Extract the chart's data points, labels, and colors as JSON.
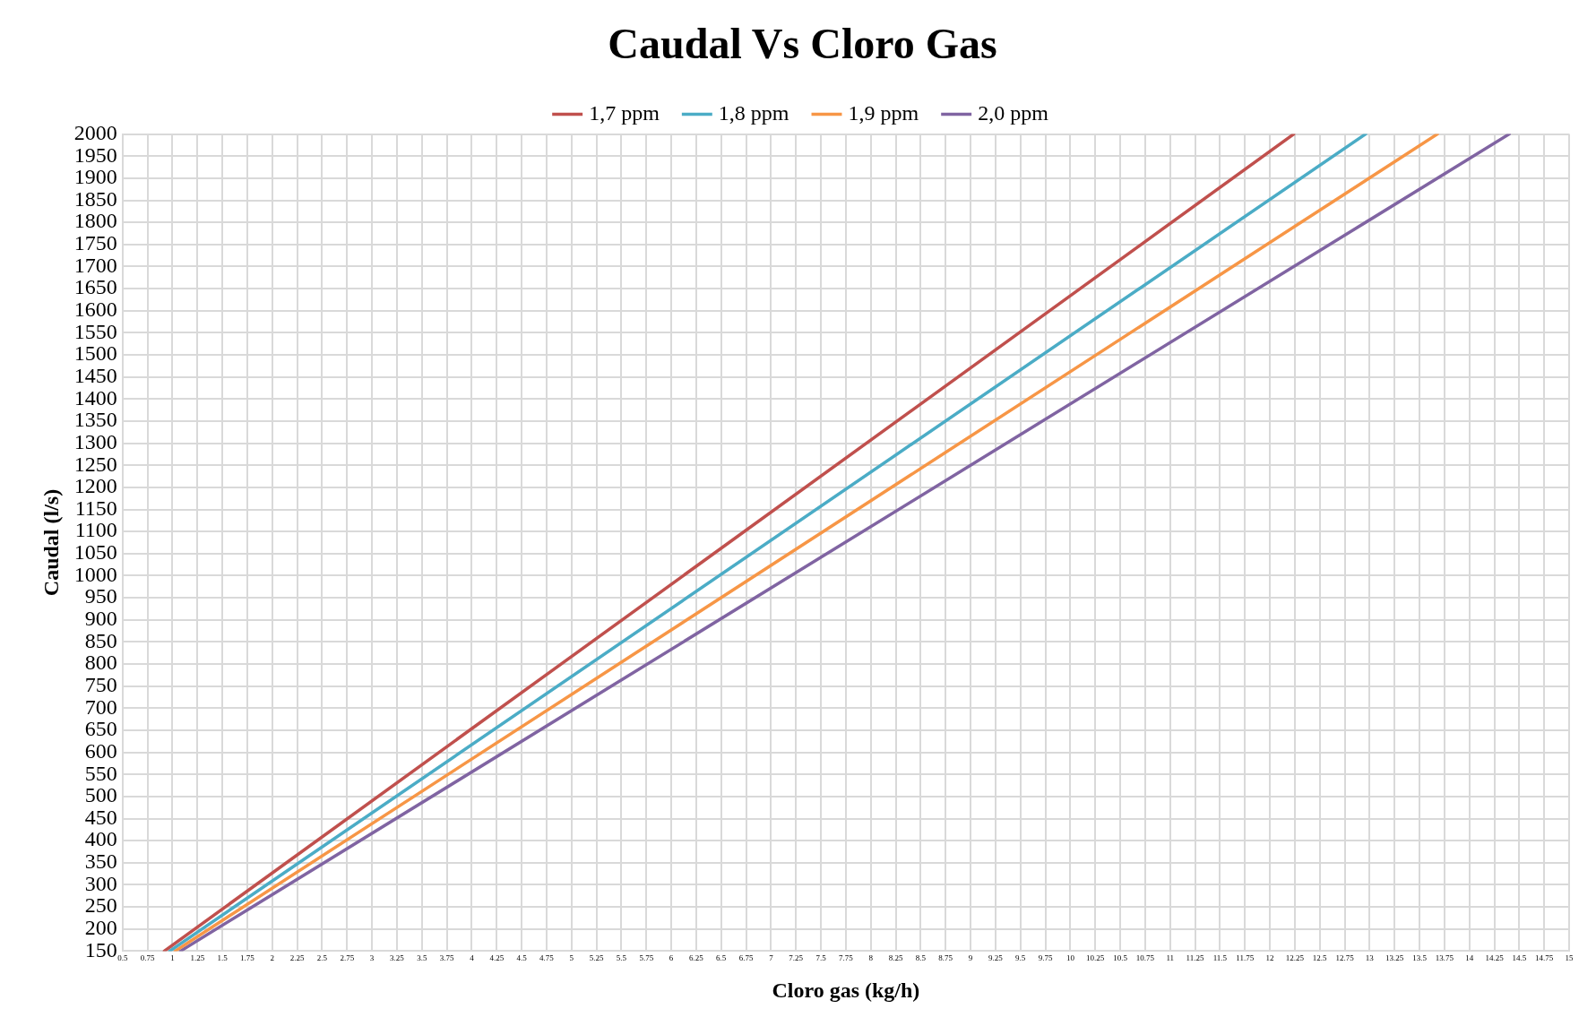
{
  "chart_data": {
    "type": "line",
    "title": "Caudal Vs Cloro Gas",
    "xlabel": "Cloro gas (kg/h)",
    "ylabel": "Caudal (l/s)",
    "series": [
      {
        "name": "1,7 ppm",
        "color": "#c0504d",
        "x": [
          0.918,
          12.24
        ],
        "values": [
          150,
          2000
        ]
      },
      {
        "name": "1,8 ppm",
        "color": "#4bacc6",
        "x": [
          0.972,
          12.96
        ],
        "values": [
          150,
          2000
        ]
      },
      {
        "name": "1,9 ppm",
        "color": "#f79646",
        "x": [
          1.026,
          13.68
        ],
        "values": [
          150,
          2000
        ]
      },
      {
        "name": "2,0 ppm",
        "color": "#8064a2",
        "x": [
          1.08,
          14.4
        ],
        "values": [
          150,
          2000
        ]
      }
    ],
    "xlim": [
      0.5,
      15
    ],
    "xticks": [
      0.5,
      0.75,
      1,
      1.25,
      1.5,
      1.75,
      2,
      2.25,
      2.5,
      2.75,
      3,
      3.25,
      3.5,
      3.75,
      4,
      4.25,
      4.5,
      4.75,
      5,
      5.25,
      5.5,
      5.75,
      6,
      6.25,
      6.5,
      6.75,
      7,
      7.25,
      7.5,
      7.75,
      8,
      8.25,
      8.5,
      8.75,
      9,
      9.25,
      9.5,
      9.75,
      10,
      10.25,
      10.5,
      10.75,
      11,
      11.25,
      11.5,
      11.75,
      12,
      12.25,
      12.5,
      12.75,
      13,
      13.25,
      13.5,
      13.75,
      14,
      14.25,
      14.5,
      14.75,
      15
    ],
    "ylim": [
      150,
      2000
    ],
    "yticks": [
      150,
      200,
      250,
      300,
      350,
      400,
      450,
      500,
      550,
      600,
      650,
      700,
      750,
      800,
      850,
      900,
      950,
      1000,
      1050,
      1100,
      1150,
      1200,
      1250,
      1300,
      1350,
      1400,
      1450,
      1500,
      1550,
      1600,
      1650,
      1700,
      1750,
      1800,
      1850,
      1900,
      1950,
      2000
    ],
    "grid": true,
    "legend": "top",
    "marker": "none",
    "line_style": "solid"
  }
}
